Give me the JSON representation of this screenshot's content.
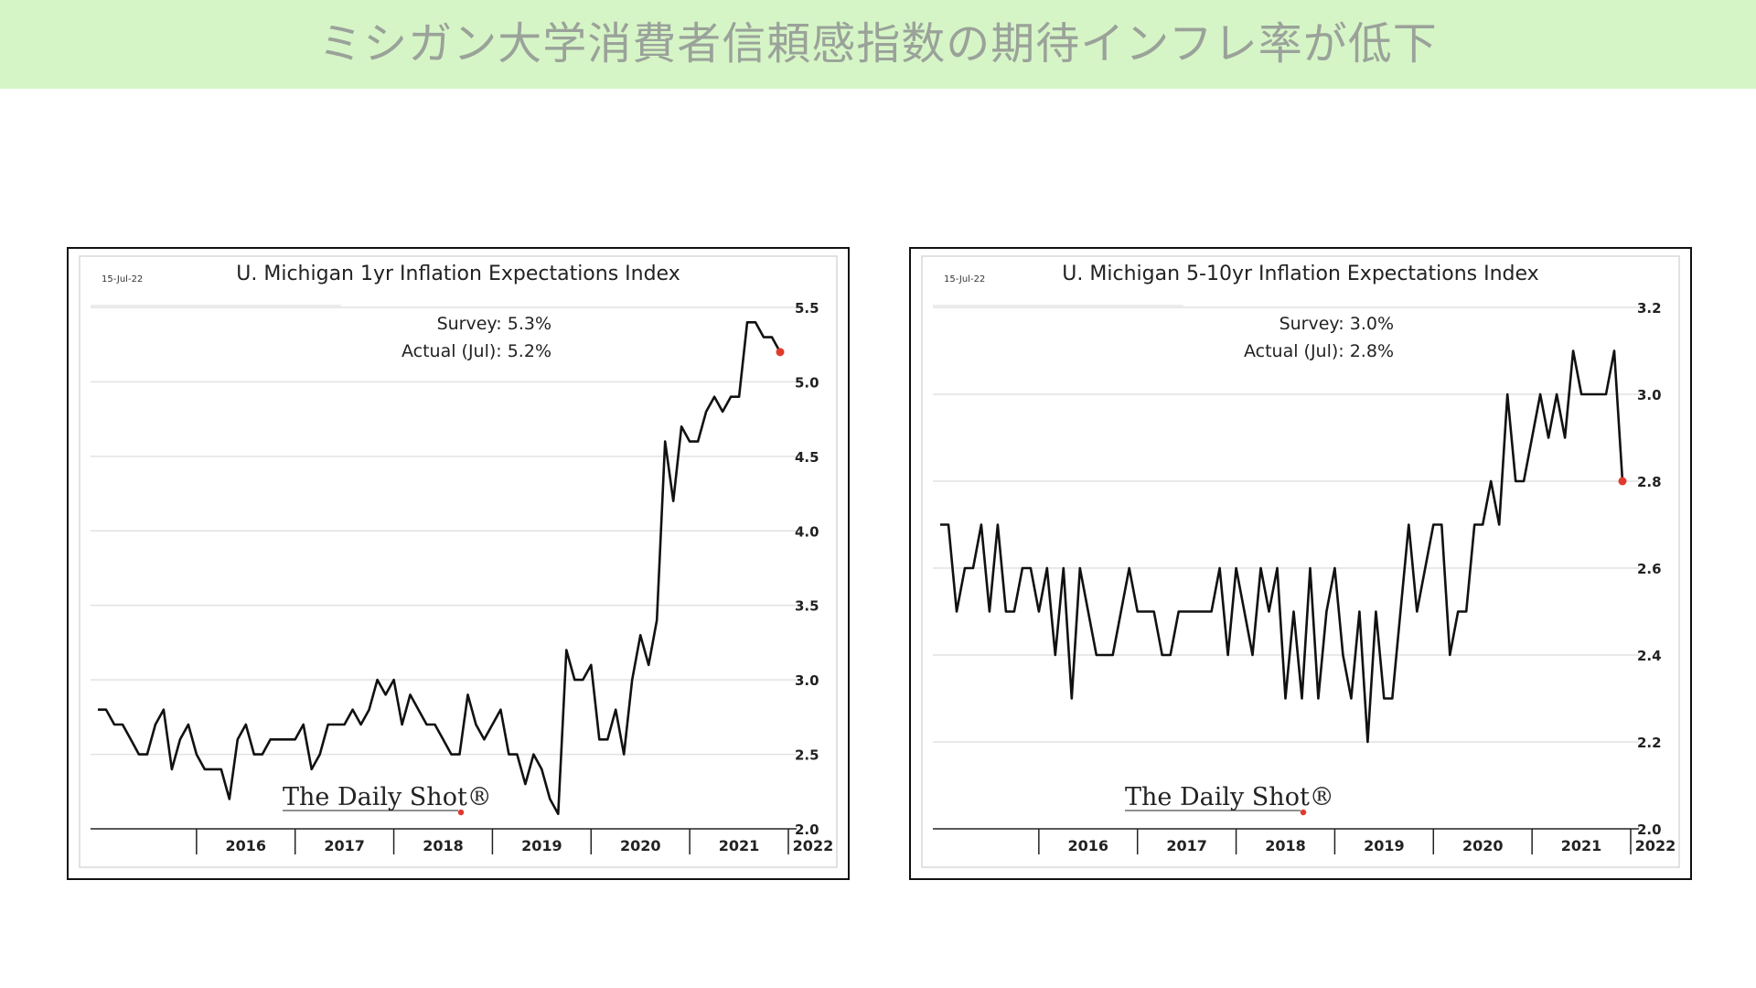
{
  "page": {
    "title": "ミシガン大学消費者信頼感指数の期待インフレ率が低下",
    "banner_color": "#d6f5c6"
  },
  "chart_data": [
    {
      "type": "line",
      "title": "U. Michigan 1yr Inflation Expectations Index",
      "date_label": "15-Jul-22",
      "annotation_survey": "Survey:  5.3%",
      "annotation_actual": "Actual (Jul):  5.2%",
      "source": "The Daily Shot®",
      "ylim": [
        2.0,
        5.5
      ],
      "yticks": [
        "2.0",
        "2.5",
        "3.0",
        "3.5",
        "4.0",
        "4.5",
        "5.0",
        "5.5"
      ],
      "ytick_values": [
        2.0,
        2.5,
        3.0,
        3.5,
        4.0,
        4.5,
        5.0,
        5.5
      ],
      "xticks": [
        "2016",
        "2017",
        "2018",
        "2019",
        "2020",
        "2021",
        "2022"
      ],
      "x_start": "2015-01",
      "x_end": "2022-07",
      "axis_position": "right",
      "grid": true,
      "line_color": "#111111",
      "highlight_color": "#e03a2f",
      "values": [
        2.8,
        2.8,
        2.7,
        2.7,
        2.6,
        2.5,
        2.5,
        2.7,
        2.8,
        2.4,
        2.6,
        2.7,
        2.5,
        2.4,
        2.4,
        2.4,
        2.2,
        2.6,
        2.7,
        2.5,
        2.5,
        2.6,
        2.6,
        2.6,
        2.6,
        2.7,
        2.4,
        2.5,
        2.7,
        2.7,
        2.7,
        2.8,
        2.7,
        2.8,
        3.0,
        2.9,
        3.0,
        2.7,
        2.9,
        2.8,
        2.7,
        2.7,
        2.6,
        2.5,
        2.5,
        2.9,
        2.7,
        2.6,
        2.7,
        2.8,
        2.5,
        2.5,
        2.3,
        2.5,
        2.4,
        2.2,
        2.1,
        3.2,
        3.0,
        3.0,
        3.1,
        2.6,
        2.6,
        2.8,
        2.5,
        3.0,
        3.3,
        3.1,
        3.4,
        4.6,
        4.2,
        4.7,
        4.6,
        4.6,
        4.8,
        4.9,
        4.8,
        4.9,
        4.9,
        5.4,
        5.4,
        5.3,
        5.3,
        5.2
      ]
    },
    {
      "type": "line",
      "title": "U. Michigan 5-10yr Inflation Expectations Index",
      "date_label": "15-Jul-22",
      "annotation_survey": "Survey:  3.0%",
      "annotation_actual": "Actual (Jul):  2.8%",
      "source": "The Daily Shot®",
      "ylim": [
        2.0,
        3.2
      ],
      "yticks": [
        "2.0",
        "2.2",
        "2.4",
        "2.6",
        "2.8",
        "3.0",
        "3.2"
      ],
      "ytick_values": [
        2.0,
        2.2,
        2.4,
        2.6,
        2.8,
        3.0,
        3.2
      ],
      "xticks": [
        "2016",
        "2017",
        "2018",
        "2019",
        "2020",
        "2021",
        "2022"
      ],
      "x_start": "2015-01",
      "x_end": "2022-07",
      "axis_position": "right",
      "grid": true,
      "line_color": "#111111",
      "highlight_color": "#e03a2f",
      "values": [
        2.7,
        2.7,
        2.5,
        2.6,
        2.6,
        2.7,
        2.5,
        2.7,
        2.5,
        2.5,
        2.6,
        2.6,
        2.5,
        2.6,
        2.4,
        2.6,
        2.3,
        2.6,
        2.5,
        2.4,
        2.4,
        2.4,
        2.5,
        2.6,
        2.5,
        2.5,
        2.5,
        2.4,
        2.4,
        2.5,
        2.5,
        2.5,
        2.5,
        2.5,
        2.6,
        2.4,
        2.6,
        2.5,
        2.4,
        2.6,
        2.5,
        2.6,
        2.3,
        2.5,
        2.3,
        2.6,
        2.3,
        2.5,
        2.6,
        2.4,
        2.3,
        2.5,
        2.2,
        2.5,
        2.3,
        2.3,
        2.5,
        2.7,
        2.5,
        2.6,
        2.7,
        2.7,
        2.4,
        2.5,
        2.5,
        2.7,
        2.7,
        2.8,
        2.7,
        3.0,
        2.8,
        2.8,
        2.9,
        3.0,
        2.9,
        3.0,
        2.9,
        3.1,
        3.0,
        3.0,
        3.0,
        3.0,
        3.1,
        2.8
      ]
    }
  ]
}
